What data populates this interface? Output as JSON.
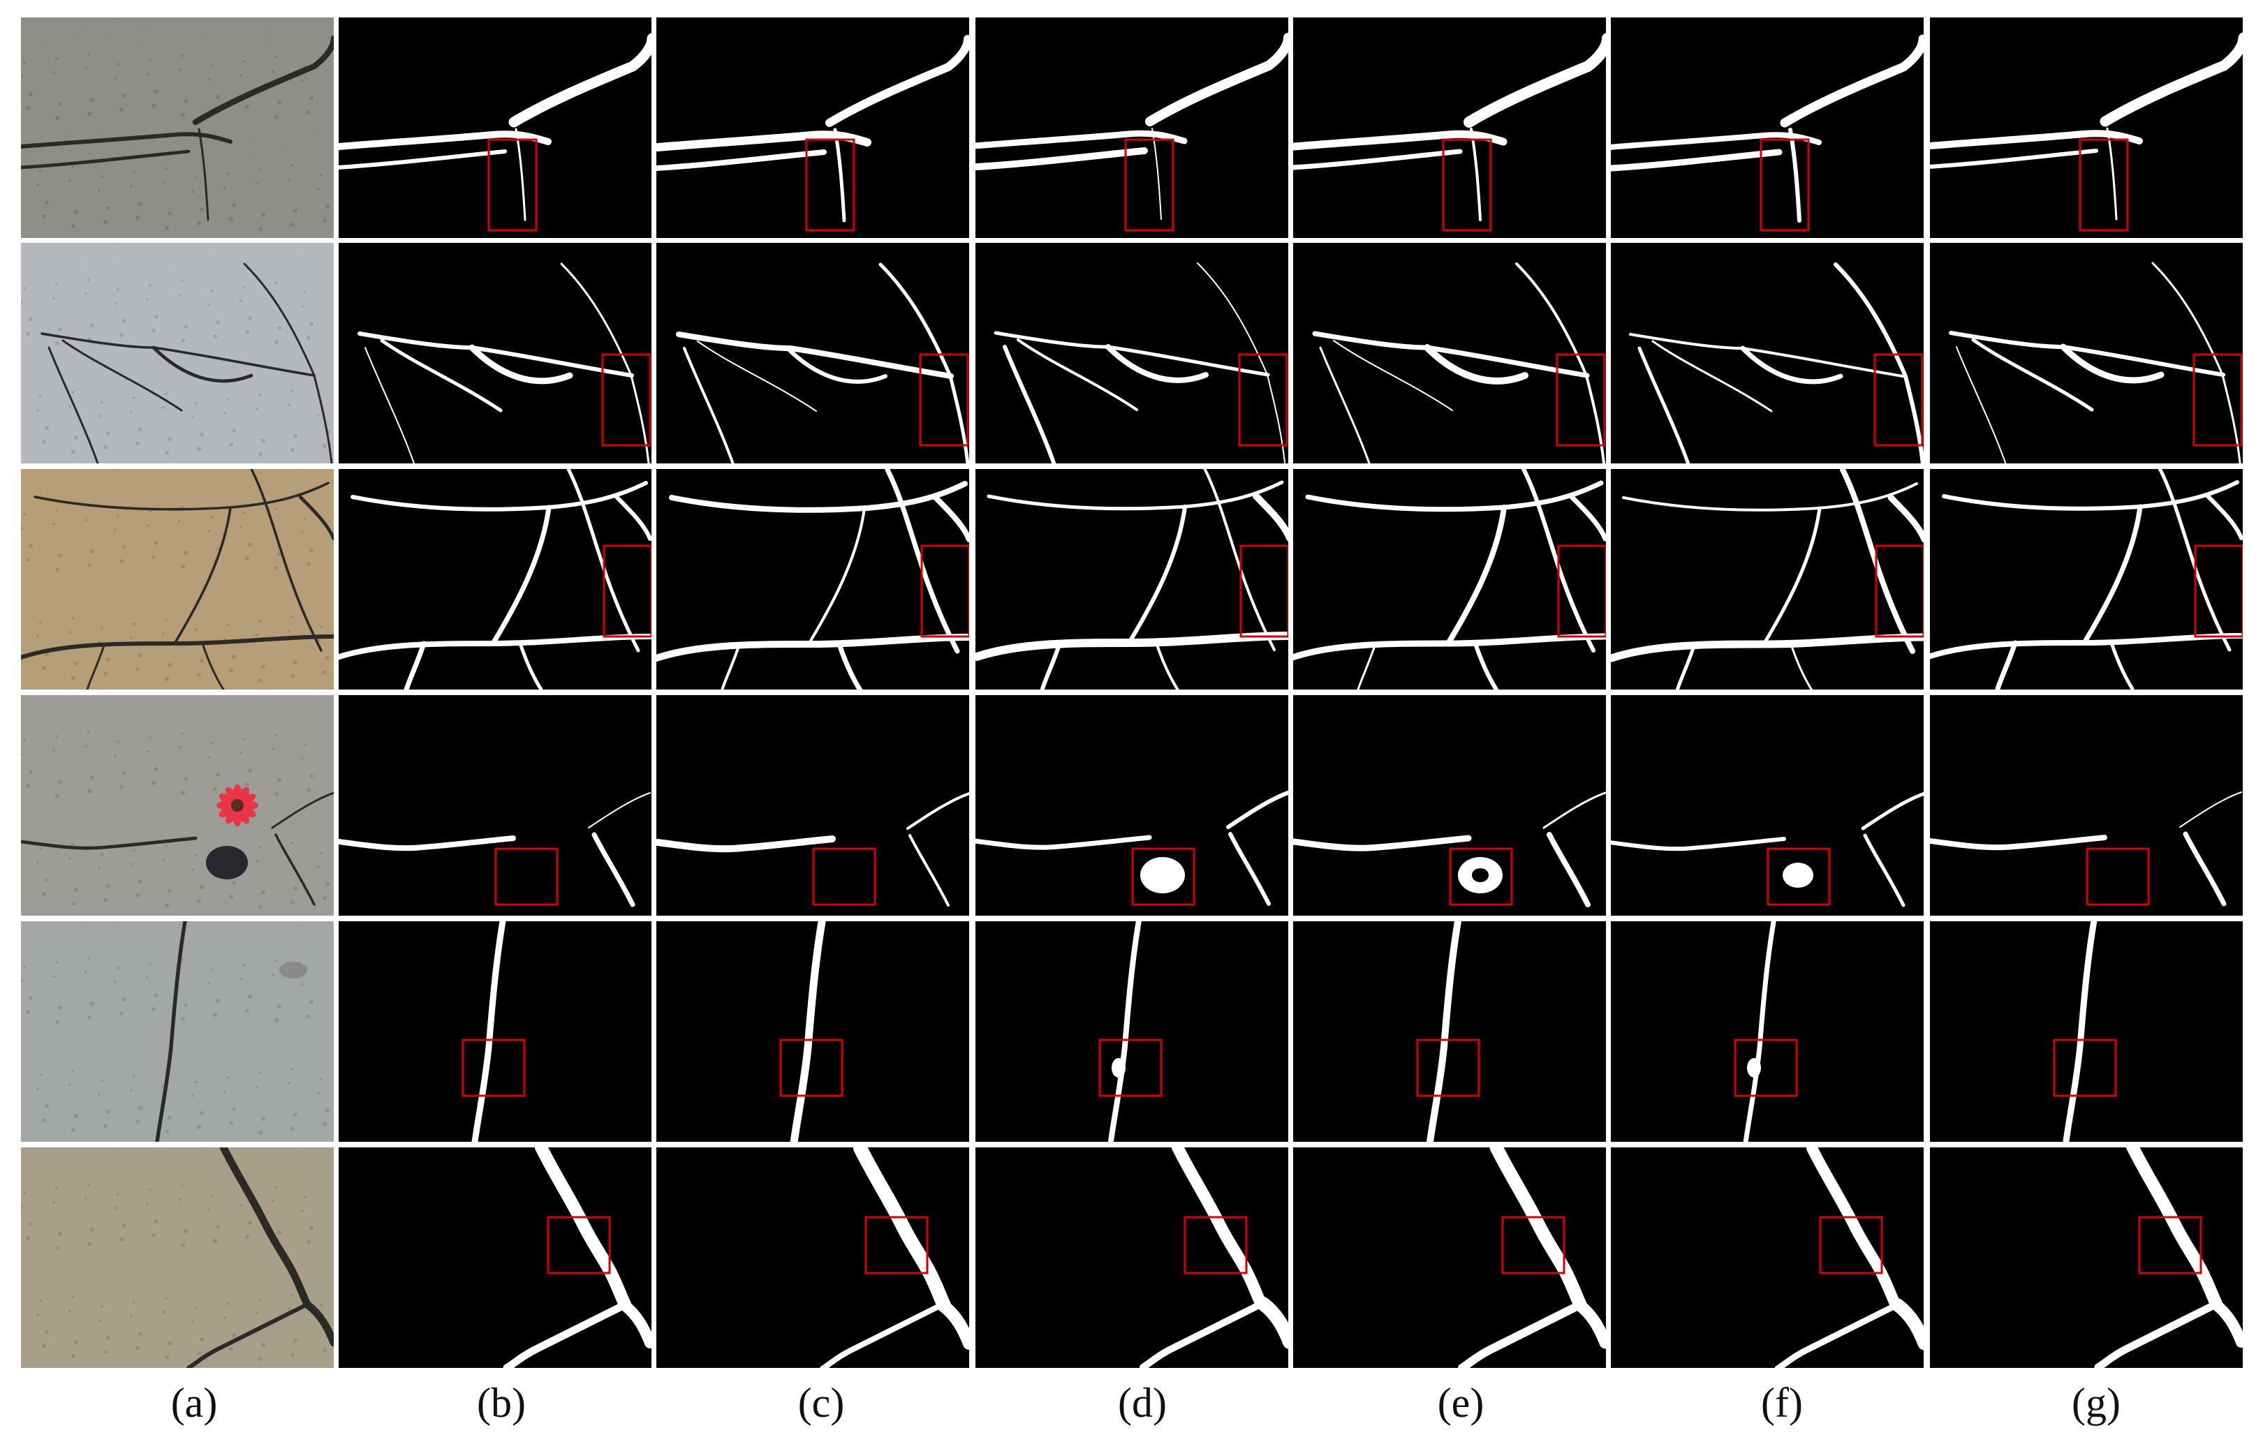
{
  "figure": {
    "column_labels": [
      "(a)",
      "(b)",
      "(c)",
      "(d)",
      "(e)",
      "(f)",
      "(g)"
    ],
    "rows": [
      {
        "name": "row-1",
        "photo_color": "#8f8e88",
        "artifact": "none"
      },
      {
        "name": "row-2",
        "photo_color": "#b5b8bd",
        "artifact": "none"
      },
      {
        "name": "row-3",
        "photo_color": "#b59e78",
        "artifact": "none"
      },
      {
        "name": "row-4",
        "photo_color": "#9e9c97",
        "artifact": "flower"
      },
      {
        "name": "row-5",
        "photo_color": "#a3a7a6",
        "artifact": "stain"
      },
      {
        "name": "row-6",
        "photo_color": "#a89f88",
        "artifact": "none"
      }
    ],
    "colors": {
      "background": "#ffffff",
      "mask_background": "#000000",
      "crack": "#ffffff",
      "highlight_box": "#d40000",
      "flower": "#e8354a"
    }
  }
}
